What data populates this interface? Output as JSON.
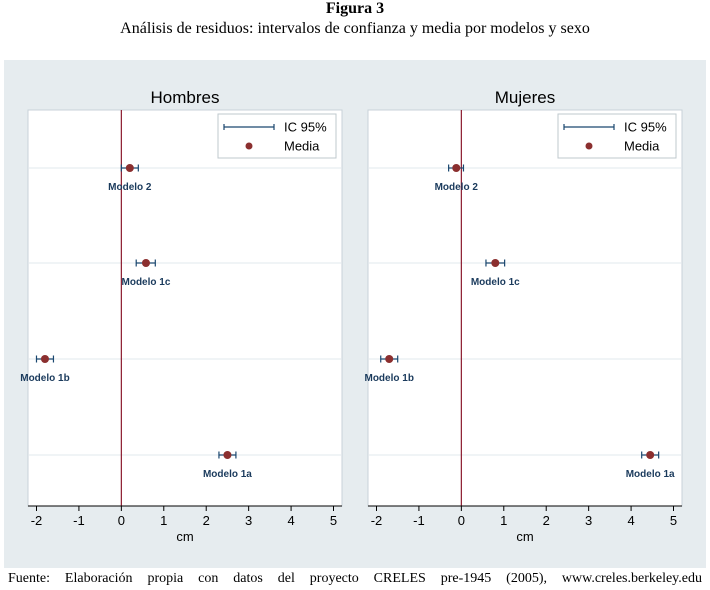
{
  "figure": {
    "label": "Figura 3",
    "title": "Análisis de residuos: intervalos de confianza y media por modelos y sexo",
    "source": "Fuente:  Elaboración  propia  con  datos  del  proyecto  CRELES  pre-1945  (2005),  www.creles.berkeley.edu"
  },
  "colors": {
    "background": "#e6ecef",
    "plot": "#ffffff",
    "marker": "#8b2f2f",
    "ci_line": "#1a476f",
    "zero_line": "#8b1a2e",
    "label": "#1a3a5c"
  },
  "chart_data": [
    {
      "type": "scatter",
      "title": "Hombres",
      "xlabel": "cm",
      "ylabel": "",
      "xlim": [
        -2.2,
        5.2
      ],
      "xticks": [
        -2,
        -1,
        0,
        1,
        2,
        3,
        4,
        5
      ],
      "grid": true,
      "legend": {
        "position": "top-right",
        "entries": [
          "IC 95%",
          "Media"
        ]
      },
      "points": [
        {
          "label": "Modelo 2",
          "mean": 0.2,
          "ci": [
            0.0,
            0.4
          ]
        },
        {
          "label": "Modelo 1c",
          "mean": 0.58,
          "ci": [
            0.35,
            0.8
          ]
        },
        {
          "label": "Modelo 1b",
          "mean": -1.8,
          "ci": [
            -2.0,
            -1.6
          ]
        },
        {
          "label": "Modelo 1a",
          "mean": 2.5,
          "ci": [
            2.3,
            2.7
          ]
        }
      ]
    },
    {
      "type": "scatter",
      "title": "Mujeres",
      "xlabel": "cm",
      "ylabel": "",
      "xlim": [
        -2.2,
        5.2
      ],
      "xticks": [
        -2,
        -1,
        0,
        1,
        2,
        3,
        4,
        5
      ],
      "grid": true,
      "legend": {
        "position": "top-right",
        "entries": [
          "IC 95%",
          "Media"
        ]
      },
      "points": [
        {
          "label": "Modelo 2",
          "mean": -0.12,
          "ci": [
            -0.3,
            0.05
          ]
        },
        {
          "label": "Modelo 1c",
          "mean": 0.8,
          "ci": [
            0.58,
            1.02
          ]
        },
        {
          "label": "Modelo 1b",
          "mean": -1.7,
          "ci": [
            -1.9,
            -1.5
          ]
        },
        {
          "label": "Modelo 1a",
          "mean": 4.45,
          "ci": [
            4.25,
            4.65
          ]
        }
      ]
    }
  ]
}
